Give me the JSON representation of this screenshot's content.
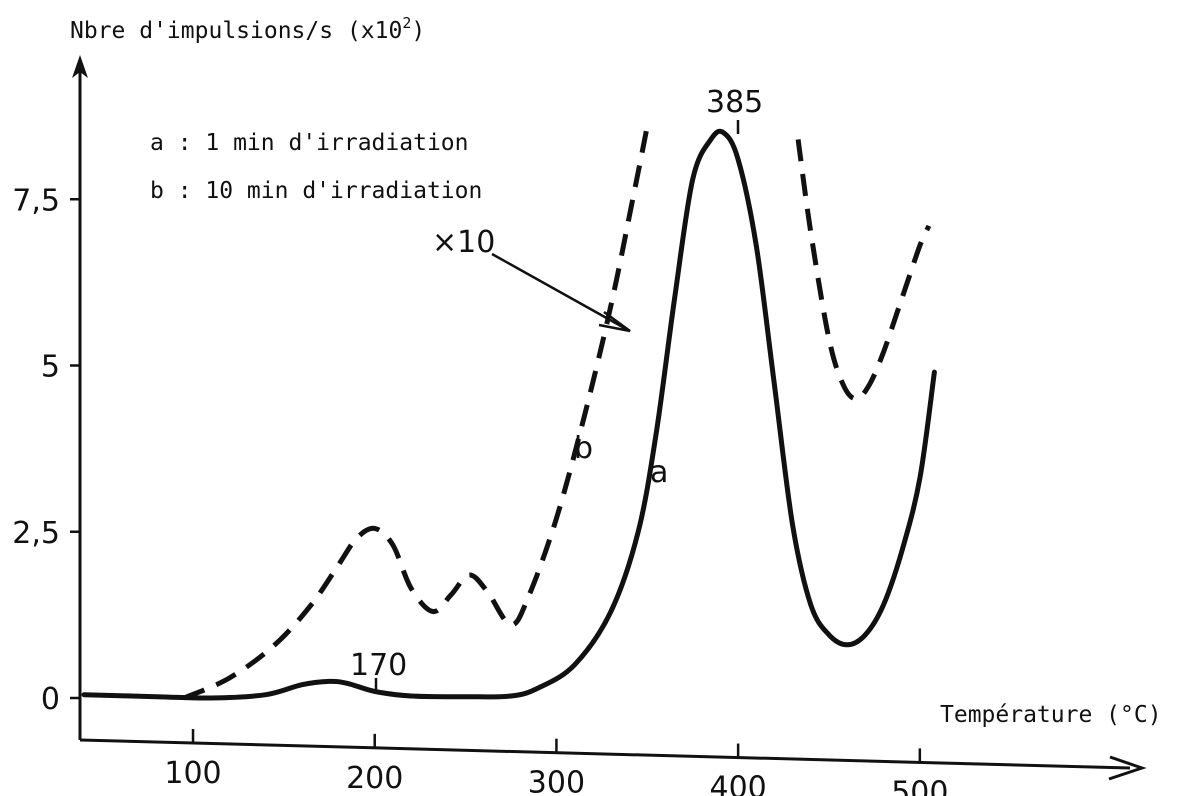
{
  "chart_data": {
    "type": "line",
    "title": "",
    "ylabel_prefix": "Nbre d'impulsions/s (x10",
    "ylabel_exponent": "2",
    "ylabel_suffix": ")",
    "xlabel": "Température (°C)",
    "x_ticks": [
      "100",
      "200",
      "300",
      "400",
      "500"
    ],
    "x_tick_values": [
      100,
      200,
      300,
      400,
      500
    ],
    "y_ticks": [
      "0",
      "2,5",
      "5",
      "7,5"
    ],
    "y_tick_values": [
      0,
      2.5,
      5,
      7.5
    ],
    "xlim": [
      0,
      600
    ],
    "ylim": [
      -0.6,
      9.5
    ],
    "grid": false,
    "legend": [
      {
        "key": "a",
        "text": "a :  1 min d'irradiation"
      },
      {
        "key": "b",
        "text": "b : 10 min d'irradiation"
      }
    ],
    "series": [
      {
        "name": "a",
        "style": "solid",
        "x": [
          40,
          80,
          110,
          140,
          160,
          175,
          185,
          200,
          220,
          250,
          275,
          290,
          310,
          330,
          345,
          355,
          365,
          375,
          385,
          392,
          400,
          410,
          420,
          430,
          440,
          450,
          460,
          470,
          480,
          490,
          500,
          508
        ],
        "y": [
          0.05,
          0.02,
          0.0,
          0.05,
          0.2,
          0.25,
          0.22,
          0.1,
          0.03,
          0.02,
          0.03,
          0.15,
          0.5,
          1.3,
          2.5,
          4.0,
          6.0,
          7.8,
          8.4,
          8.5,
          8.1,
          6.8,
          4.7,
          2.6,
          1.4,
          0.95,
          0.8,
          0.95,
          1.4,
          2.2,
          3.3,
          4.9
        ]
      },
      {
        "name": "b",
        "style": "dashed",
        "segments": [
          {
            "x": [
              95,
              120,
              145,
              165,
              180,
              190,
              200,
              210,
              220,
              232,
              242,
              252,
              262,
              275,
              285,
              300,
              315,
              330,
              342,
              350
            ],
            "y": [
              0.0,
              0.3,
              0.8,
              1.4,
              2.0,
              2.4,
              2.55,
              2.3,
              1.65,
              1.3,
              1.55,
              1.85,
              1.6,
              1.1,
              1.55,
              2.7,
              4.2,
              5.9,
              7.5,
              8.6
            ]
          },
          {
            "x": [
              433,
              440,
              450,
              458,
              465,
              472,
              480,
              490,
              500,
              505
            ],
            "y": [
              8.4,
              7.0,
              5.4,
              4.7,
              4.5,
              4.7,
              5.2,
              6.0,
              6.8,
              7.1
            ]
          }
        ]
      }
    ],
    "annotations": [
      {
        "text": "385",
        "x": 385,
        "y": 8.5
      },
      {
        "text": "170",
        "x": 175,
        "y": 0.25
      },
      {
        "text": "×10",
        "target_series": "b"
      },
      {
        "text": "b",
        "series": "b"
      },
      {
        "text": "a",
        "series": "a"
      }
    ]
  }
}
